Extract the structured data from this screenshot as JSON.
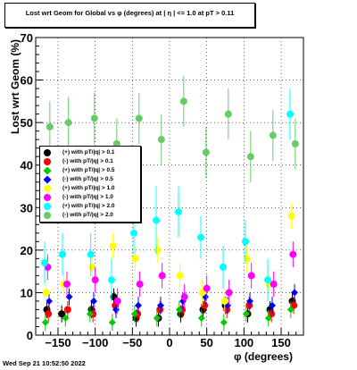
{
  "chart_data": {
    "type": "scatter",
    "title": "Lost wrt Geom for Global vs φ (degrees) at |  η | <= 1.0 at pT > 0.11",
    "xlabel": "φ (degrees)",
    "ylabel": "Lost wrt Geom (%)",
    "xlim": [
      -180,
      180
    ],
    "ylim": [
      0,
      70
    ],
    "x_ticks": [
      -150,
      -100,
      -50,
      0,
      50,
      100,
      150
    ],
    "y_ticks": [
      0,
      10,
      20,
      30,
      40,
      50,
      60,
      70
    ],
    "legend_placement": "left-middle",
    "grid": true,
    "series": [
      {
        "name": "(+) with pT/|q| > 0.1",
        "color": "#000000",
        "marker": "circle",
        "x": [
          -165,
          -145,
          -105,
          -75,
          -45,
          -15,
          15,
          45,
          75,
          105,
          135,
          165
        ],
        "y": [
          6,
          5,
          6,
          9,
          4,
          4,
          5,
          6,
          7,
          5,
          6,
          8
        ],
        "err": [
          2,
          2,
          2,
          2,
          2,
          2,
          2,
          2,
          2,
          2,
          2,
          2
        ]
      },
      {
        "name": "(-) with pT/|q| > 0.1",
        "color": "#ff0000",
        "marker": "circle",
        "x": [
          -163,
          -137,
          -103,
          -73,
          -43,
          -13,
          17,
          47,
          77,
          107,
          137,
          167
        ],
        "y": [
          5,
          6,
          5,
          7,
          5,
          6,
          6,
          7,
          6,
          7,
          5,
          7
        ],
        "err": [
          2,
          2,
          2,
          2,
          2,
          2,
          2,
          2,
          2,
          2,
          2,
          2
        ]
      },
      {
        "name": "(+) with pT/|q| > 0.5",
        "color": "#00cc00",
        "marker": "diamond",
        "x": [
          -167,
          -140,
          -107,
          -77,
          -47,
          -17,
          13,
          43,
          73,
          103,
          133,
          163
        ],
        "y": [
          3,
          4,
          5,
          3,
          5,
          4,
          6,
          4,
          3,
          5,
          4,
          6
        ],
        "err": [
          2,
          2,
          2,
          2,
          2,
          2,
          2,
          2,
          2,
          2,
          2,
          2
        ]
      },
      {
        "name": "(-) with pT/|q| > 0.5",
        "color": "#0000ff",
        "marker": "diamond",
        "x": [
          -162,
          -135,
          -102,
          -72,
          -42,
          -12,
          18,
          48,
          78,
          108,
          138,
          168
        ],
        "y": [
          8,
          9,
          8,
          6,
          7,
          7,
          8,
          9,
          7,
          8,
          7,
          10
        ],
        "err": [
          2,
          2,
          2,
          2,
          2,
          2,
          2,
          2,
          2,
          2,
          2,
          2
        ]
      },
      {
        "name": "(+) with pT/|q| > 1.0",
        "color": "#ffff00",
        "marker": "circle",
        "x": [
          -166,
          -142,
          -104,
          -76,
          -46,
          -16,
          14,
          44,
          74,
          104,
          134,
          164
        ],
        "y": [
          10,
          12,
          16,
          21,
          18,
          20,
          14,
          10,
          8,
          18,
          12,
          28
        ],
        "err": [
          3,
          3,
          3,
          3,
          3,
          3,
          3,
          3,
          3,
          3,
          3,
          3
        ]
      },
      {
        "name": "(-) with pT/|q| > 1.0",
        "color": "#ff00ff",
        "marker": "circle",
        "x": [
          -164,
          -138,
          -100,
          -70,
          -40,
          -10,
          20,
          50,
          80,
          110,
          140,
          166
        ],
        "y": [
          16,
          12,
          13,
          8,
          12,
          14,
          9,
          11,
          10,
          14,
          12,
          19
        ],
        "err": [
          3,
          3,
          3,
          3,
          3,
          3,
          3,
          3,
          3,
          3,
          3,
          3
        ]
      },
      {
        "name": "(+) with pT/|q| > 2.0",
        "color": "#00ffff",
        "marker": "circle",
        "x": [
          -168,
          -144,
          -106,
          -78,
          -48,
          -18,
          12,
          42,
          72,
          102,
          132,
          162
        ],
        "y": [
          17,
          19,
          19,
          13,
          24,
          27,
          29,
          23,
          16,
          22,
          13,
          52
        ],
        "err": [
          5,
          5,
          5,
          5,
          5,
          8,
          6,
          5,
          5,
          5,
          5,
          6
        ]
      },
      {
        "name": "(-) with pT/|q| > 2.0",
        "color": "#66cc66",
        "marker": "circle",
        "x": [
          -161,
          -136,
          -101,
          -71,
          -41,
          -11,
          19,
          49,
          79,
          109,
          139,
          169
        ],
        "y": [
          49,
          50,
          51,
          45,
          51,
          46,
          55,
          43,
          52,
          42,
          47,
          45
        ],
        "err": [
          6,
          6,
          6,
          6,
          6,
          6,
          6,
          6,
          6,
          6,
          6,
          6
        ]
      }
    ]
  },
  "footer": {
    "timestamp": "Wed Sep 21 10:52:50 2022"
  }
}
